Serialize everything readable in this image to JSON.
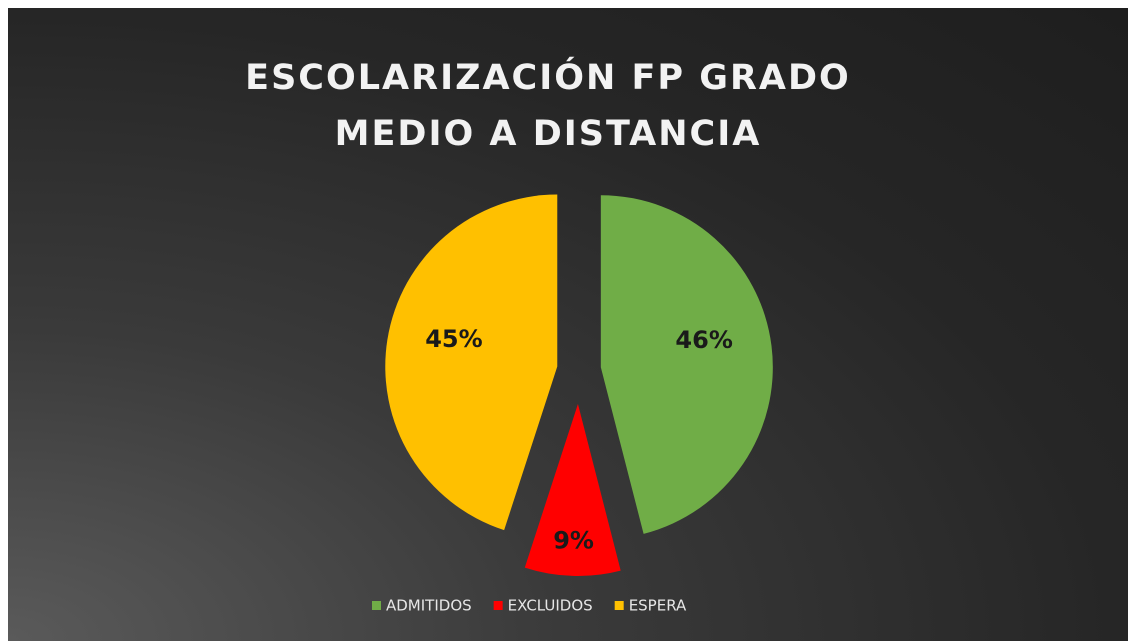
{
  "chart_data": {
    "type": "pie",
    "title": "ESCOLARIZACIÓN FP GRADO MEDIO A DISTANCIA",
    "categories": [
      "ADMITIDOS",
      "EXCLUIDOS",
      "ESPERA"
    ],
    "values": [
      46,
      9,
      45
    ],
    "value_labels": [
      "46%",
      "9%",
      "45%"
    ],
    "colors": [
      "#70ad47",
      "#ff0000",
      "#ffc000"
    ],
    "legend": "bottom"
  }
}
